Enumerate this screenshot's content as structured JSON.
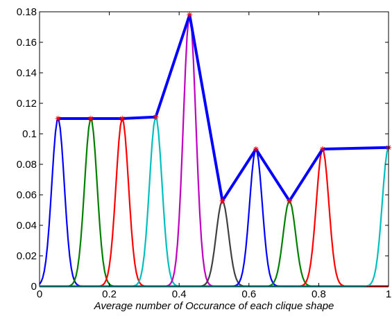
{
  "chart_data": {
    "type": "line",
    "title": "",
    "xlabel": "Average number of Occurance of each clique shape",
    "ylabel": "",
    "xlim": [
      0,
      1
    ],
    "ylim": [
      0,
      0.18
    ],
    "x_ticks": [
      "0",
      "0.2",
      "0.4",
      "0.6",
      "0.8",
      "1"
    ],
    "x_tick_values": [
      0,
      0.2,
      0.4,
      0.6,
      0.8,
      1
    ],
    "y_ticks": [
      "0",
      "0.02",
      "0.04",
      "0.06",
      "0.08",
      "0.1",
      "0.12",
      "0.14",
      "0.16",
      "0.18"
    ],
    "y_tick_values": [
      0,
      0.02,
      0.04,
      0.06,
      0.08,
      0.1,
      0.12,
      0.14,
      0.16,
      0.18
    ],
    "grid": false,
    "legend": "none",
    "envelope": {
      "color": "#0000ff",
      "marker": "*",
      "marker_color": "#ff0000",
      "x": [
        0.053,
        0.147,
        0.237,
        0.333,
        0.43,
        0.524,
        0.62,
        0.716,
        0.811,
        1.0
      ],
      "y": [
        0.11,
        0.11,
        0.11,
        0.111,
        0.178,
        0.056,
        0.09,
        0.056,
        0.09,
        0.091
      ]
    },
    "series": [
      {
        "color": "#0000ff",
        "peak_x": 0.053,
        "peak_y": 0.11,
        "width": 0.018
      },
      {
        "color": "#007f00",
        "peak_x": 0.147,
        "peak_y": 0.11,
        "width": 0.018
      },
      {
        "color": "#ff0000",
        "peak_x": 0.237,
        "peak_y": 0.11,
        "width": 0.018
      },
      {
        "color": "#00bfbf",
        "peak_x": 0.333,
        "peak_y": 0.111,
        "width": 0.018
      },
      {
        "color": "#bf00bf",
        "peak_x": 0.43,
        "peak_y": 0.178,
        "width": 0.018
      },
      {
        "color": "#404040",
        "peak_x": 0.524,
        "peak_y": 0.056,
        "width": 0.018
      },
      {
        "color": "#0000ff",
        "peak_x": 0.62,
        "peak_y": 0.09,
        "width": 0.018
      },
      {
        "color": "#007f00",
        "peak_x": 0.716,
        "peak_y": 0.056,
        "width": 0.018
      },
      {
        "color": "#ff0000",
        "peak_x": 0.811,
        "peak_y": 0.09,
        "width": 0.018
      },
      {
        "color": "#00bfbf",
        "peak_x": 1.0,
        "peak_y": 0.091,
        "width": 0.018
      }
    ]
  }
}
